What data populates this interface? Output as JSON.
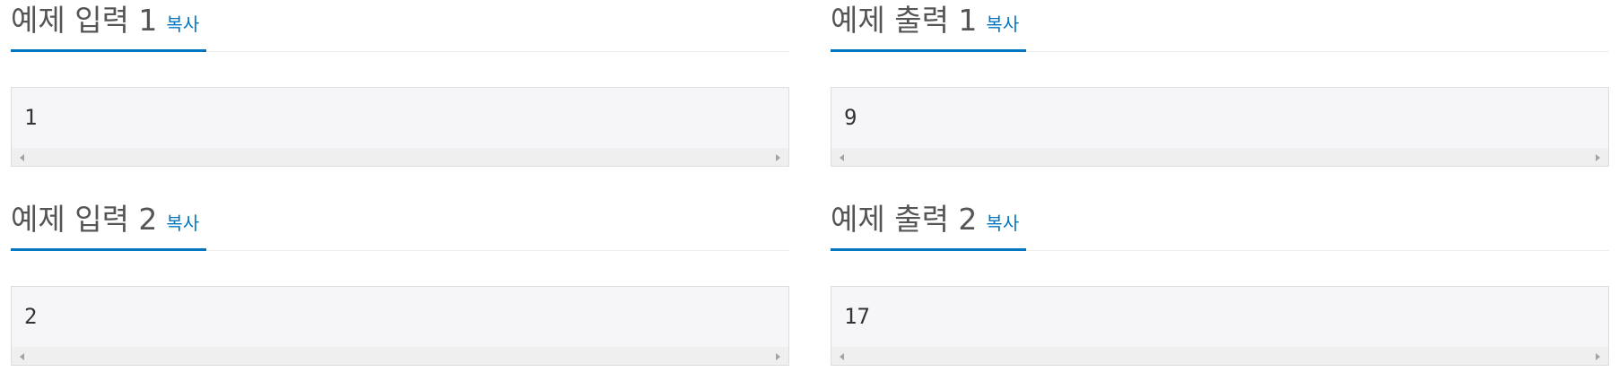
{
  "copy_label": "복사",
  "samples": [
    {
      "title": "예제 입력 1",
      "value": "1"
    },
    {
      "title": "예제 출력 1",
      "value": "9"
    },
    {
      "title": "예제 입력 2",
      "value": "2"
    },
    {
      "title": "예제 출력 2",
      "value": "17"
    }
  ],
  "colors": {
    "accent": "#0076c0",
    "title_text": "#555555",
    "box_background": "#f6f6f8",
    "box_border": "#dddddd"
  },
  "icons": {
    "scroll_left": "scroll-left-arrow-icon",
    "scroll_right": "scroll-right-arrow-icon"
  }
}
